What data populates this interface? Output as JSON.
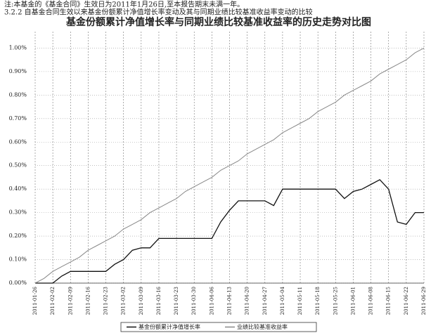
{
  "notes": [
    "注:本基金的《基金合同》生效日为2011年1月26日,至本报告期末未满一年。",
    "3.2.2 自基金合同生效以来基金份额累计净值增长率变动及其与同期业绩比较基准收益率变动的比较"
  ],
  "chart_data": {
    "type": "line",
    "title": "基金份额累计净值增长率与同期业绩比较基准收益率的历史走势对比图",
    "categories": [
      "2011-01-26",
      null,
      "2011-02-02",
      null,
      "2011-02-09",
      null,
      "2011-02-16",
      null,
      "2011-02-23",
      null,
      "2011-03-02",
      null,
      "2011-03-09",
      null,
      "2011-03-16",
      null,
      "2011-03-23",
      null,
      "2011-03-30",
      null,
      "2011-04-06",
      null,
      "2011-04-13",
      null,
      "2011-04-20",
      null,
      "2011-04-27",
      null,
      "2011-05-04",
      null,
      "2011-05-11",
      null,
      "2011-05-18",
      null,
      "2011-05-25",
      null,
      "2011-06-01",
      null,
      "2011-06-08",
      null,
      "2011-06-15",
      null,
      "2011-06-22",
      null,
      "2011-06-29"
    ],
    "series": [
      {
        "name": "基金份额累计净值增长率",
        "color": "#111111",
        "values": [
          0,
          0,
          0,
          0.03,
          0.05,
          0.05,
          0.05,
          0.05,
          0.05,
          0.08,
          0.1,
          0.14,
          0.15,
          0.15,
          0.19,
          0.19,
          0.19,
          0.19,
          0.19,
          0.19,
          0.19,
          0.26,
          0.31,
          0.35,
          0.35,
          0.35,
          0.35,
          0.33,
          0.4,
          0.4,
          0.4,
          0.4,
          0.4,
          0.4,
          0.4,
          0.36,
          0.39,
          0.4,
          0.42,
          0.44,
          0.4,
          0.26,
          0.25,
          0.3,
          0.3
        ]
      },
      {
        "name": "业绩比较基准收益率",
        "color": "#888888",
        "values": [
          0,
          0.02,
          0.05,
          0.07,
          0.09,
          0.11,
          0.14,
          0.16,
          0.18,
          0.2,
          0.23,
          0.25,
          0.27,
          0.3,
          0.32,
          0.34,
          0.36,
          0.39,
          0.41,
          0.43,
          0.45,
          0.48,
          0.5,
          0.52,
          0.55,
          0.57,
          0.59,
          0.61,
          0.64,
          0.66,
          0.68,
          0.7,
          0.73,
          0.75,
          0.77,
          0.8,
          0.82,
          0.84,
          0.86,
          0.89,
          0.91,
          0.93,
          0.95,
          0.98,
          1.0
        ]
      }
    ],
    "ylim": [
      0,
      1.07
    ],
    "yticks": [
      {
        "value": 0,
        "label": "0.00%"
      },
      {
        "value": 0.1,
        "label": "0.10%"
      },
      {
        "value": 0.2,
        "label": "0.20%"
      },
      {
        "value": 0.3,
        "label": "0.30%"
      },
      {
        "value": 0.4,
        "label": "0.40%"
      },
      {
        "value": 0.5,
        "label": "0.50%"
      },
      {
        "value": 0.6,
        "label": "0.60%"
      },
      {
        "value": 0.7,
        "label": "0.70%"
      },
      {
        "value": 0.8,
        "label": "0.80%"
      },
      {
        "value": 0.9,
        "label": "0.90%"
      },
      {
        "value": 1.0,
        "label": "1.00%"
      }
    ],
    "grid": true
  }
}
